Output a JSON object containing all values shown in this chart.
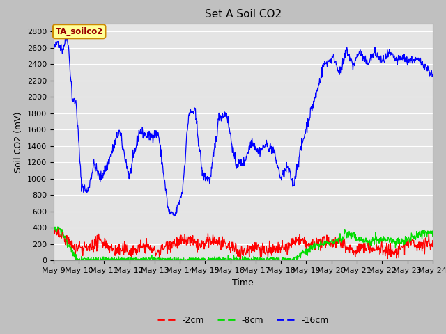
{
  "title": "Set A Soil CO2",
  "xlabel": "Time",
  "ylabel": "Soil CO2 (mV)",
  "ylim": [
    0,
    2900
  ],
  "yticks": [
    0,
    200,
    400,
    600,
    800,
    1000,
    1200,
    1400,
    1600,
    1800,
    2000,
    2200,
    2400,
    2600,
    2800
  ],
  "fig_bg_color": "#c8c8c8",
  "plot_bg_color": "#e8e8e8",
  "grid_color": "#ffffff",
  "label_box_color": "#ffff99",
  "label_box_text": "TA_soilco2",
  "line_colors": {
    "red": "#ff0000",
    "green": "#00dd00",
    "blue": "#0000ff"
  },
  "legend_labels": [
    "-2cm",
    "-8cm",
    "-16cm"
  ],
  "xtick_labels": [
    "May 9",
    "May 10",
    "May 11",
    "May 12",
    "May 13",
    "May 14",
    "May 15",
    "May 16",
    "May 17",
    "May 18",
    "May 19",
    "May 20",
    "May 21",
    "May 22",
    "May 23",
    "May 24"
  ],
  "font_size": 8,
  "title_fontsize": 11
}
